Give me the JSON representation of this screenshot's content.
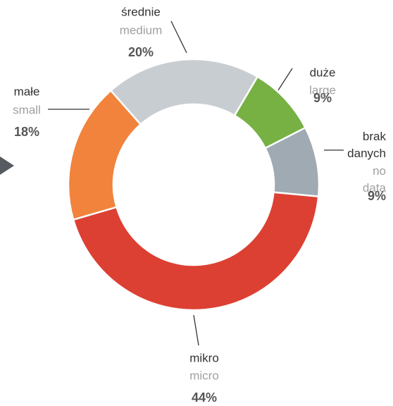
{
  "chart_data": {
    "type": "pie",
    "donut": true,
    "categories": [
      "średnie",
      "duże",
      "brak danych",
      "mikro",
      "małe"
    ],
    "categories_en": [
      "medium",
      "large",
      "no data",
      "micro",
      "small"
    ],
    "values": [
      20,
      9,
      9,
      44,
      18
    ],
    "value_labels": [
      "20%",
      "9%",
      "9%",
      "44%",
      "18%"
    ],
    "colors": [
      "#c8cdd2",
      "#77b144",
      "#9faab3",
      "#dc4033",
      "#f1833c"
    ]
  }
}
